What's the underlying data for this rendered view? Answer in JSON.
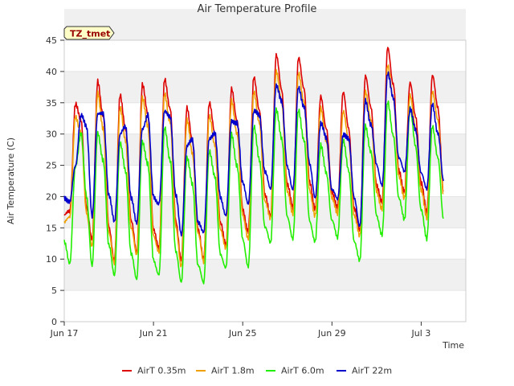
{
  "chart_data": {
    "type": "line",
    "title": "Air Temperature Profile",
    "xlabel": "Time",
    "ylabel": "Air Temperature (C)",
    "site_badge": "TZ_tmet",
    "ylim": [
      0,
      45
    ],
    "yticks": [
      0,
      5,
      10,
      15,
      20,
      25,
      30,
      35,
      40,
      45
    ],
    "xlim": [
      "2018-06-17",
      "2018-07-05"
    ],
    "xticks": [
      {
        "label": "Jun 17",
        "day": 0
      },
      {
        "label": "Jun 21",
        "day": 4
      },
      {
        "label": "Jun 25",
        "day": 8
      },
      {
        "label": "Jun 29",
        "day": 12
      },
      {
        "label": "Jul 3",
        "day": 16
      }
    ],
    "grid": "horizontal bands",
    "legend_position": "bottom",
    "x_note": "x values are dates; t is days since Jun 17 00:00 (fractional), one sample every 3 hours",
    "series": [
      {
        "name": "AirT 0.35m",
        "color": "#dd0000",
        "points": [
          [
            0.0,
            17.0
          ],
          [
            0.25,
            17.5
          ],
          [
            0.5,
            35.0
          ],
          [
            0.75,
            32.0
          ],
          [
            1.0,
            18.5
          ],
          [
            1.25,
            13.0
          ],
          [
            1.5,
            38.5
          ],
          [
            1.75,
            33.0
          ],
          [
            2.0,
            15.0
          ],
          [
            2.25,
            10.0
          ],
          [
            2.5,
            36.0
          ],
          [
            2.75,
            31.0
          ],
          [
            3.0,
            16.0
          ],
          [
            3.25,
            11.0
          ],
          [
            3.5,
            38.0
          ],
          [
            3.75,
            33.0
          ],
          [
            4.0,
            15.0
          ],
          [
            4.25,
            11.5
          ],
          [
            4.5,
            39.0
          ],
          [
            4.75,
            34.0
          ],
          [
            5.0,
            16.0
          ],
          [
            5.25,
            10.0
          ],
          [
            5.5,
            34.0
          ],
          [
            5.75,
            29.0
          ],
          [
            6.0,
            14.5
          ],
          [
            6.25,
            10.0
          ],
          [
            6.5,
            35.0
          ],
          [
            6.75,
            30.0
          ],
          [
            7.0,
            16.0
          ],
          [
            7.25,
            12.0
          ],
          [
            7.5,
            37.5
          ],
          [
            7.75,
            32.0
          ],
          [
            8.0,
            18.0
          ],
          [
            8.25,
            14.5
          ],
          [
            8.5,
            39.0
          ],
          [
            8.75,
            34.0
          ],
          [
            9.0,
            20.0
          ],
          [
            9.25,
            17.0
          ],
          [
            9.5,
            42.5
          ],
          [
            9.75,
            37.0
          ],
          [
            10.0,
            22.0
          ],
          [
            10.25,
            18.0
          ],
          [
            10.5,
            42.5
          ],
          [
            10.75,
            37.0
          ],
          [
            11.0,
            22.5
          ],
          [
            11.25,
            18.0
          ],
          [
            11.5,
            36.0
          ],
          [
            11.75,
            31.0
          ],
          [
            12.0,
            20.5
          ],
          [
            12.25,
            18.5
          ],
          [
            12.5,
            36.5
          ],
          [
            12.75,
            31.0
          ],
          [
            13.0,
            18.0
          ],
          [
            13.25,
            14.5
          ],
          [
            13.5,
            39.5
          ],
          [
            13.75,
            34.0
          ],
          [
            14.0,
            22.0
          ],
          [
            14.25,
            19.0
          ],
          [
            14.5,
            44.0
          ],
          [
            14.75,
            38.0
          ],
          [
            15.0,
            24.0
          ],
          [
            15.25,
            21.0
          ],
          [
            15.5,
            38.0
          ],
          [
            15.75,
            33.0
          ],
          [
            16.0,
            22.0
          ],
          [
            16.25,
            17.5
          ],
          [
            16.5,
            39.5
          ],
          [
            16.75,
            34.0
          ],
          [
            17.0,
            21.0
          ]
        ]
      },
      {
        "name": "AirT 1.8m",
        "color": "#f0a000",
        "points": [
          [
            0.0,
            16.0
          ],
          [
            0.25,
            16.5
          ],
          [
            0.5,
            33.0
          ],
          [
            0.75,
            30.0
          ],
          [
            1.0,
            17.5
          ],
          [
            1.25,
            12.0
          ],
          [
            1.5,
            36.5
          ],
          [
            1.75,
            31.0
          ],
          [
            2.0,
            14.0
          ],
          [
            2.25,
            9.5
          ],
          [
            2.5,
            34.0
          ],
          [
            2.75,
            29.0
          ],
          [
            3.0,
            15.0
          ],
          [
            3.25,
            10.5
          ],
          [
            3.5,
            36.0
          ],
          [
            3.75,
            31.0
          ],
          [
            4.0,
            14.0
          ],
          [
            4.25,
            11.0
          ],
          [
            4.5,
            36.5
          ],
          [
            4.75,
            32.0
          ],
          [
            5.0,
            15.0
          ],
          [
            5.25,
            9.0
          ],
          [
            5.5,
            32.0
          ],
          [
            5.75,
            27.0
          ],
          [
            6.0,
            14.0
          ],
          [
            6.25,
            9.5
          ],
          [
            6.5,
            33.0
          ],
          [
            6.75,
            28.0
          ],
          [
            7.0,
            15.0
          ],
          [
            7.25,
            11.5
          ],
          [
            7.5,
            35.5
          ],
          [
            7.75,
            30.0
          ],
          [
            8.0,
            17.0
          ],
          [
            8.25,
            13.5
          ],
          [
            8.5,
            36.5
          ],
          [
            8.75,
            32.0
          ],
          [
            9.0,
            19.0
          ],
          [
            9.25,
            16.5
          ],
          [
            9.5,
            40.0
          ],
          [
            9.75,
            35.0
          ],
          [
            10.0,
            21.0
          ],
          [
            10.25,
            17.0
          ],
          [
            10.5,
            40.0
          ],
          [
            10.75,
            35.0
          ],
          [
            11.0,
            21.0
          ],
          [
            11.25,
            17.0
          ],
          [
            11.5,
            34.0
          ],
          [
            11.75,
            29.0
          ],
          [
            12.0,
            19.5
          ],
          [
            12.25,
            17.5
          ],
          [
            12.5,
            33.5
          ],
          [
            12.75,
            29.0
          ],
          [
            13.0,
            17.0
          ],
          [
            13.25,
            13.5
          ],
          [
            13.5,
            37.0
          ],
          [
            13.75,
            32.0
          ],
          [
            14.0,
            21.0
          ],
          [
            14.25,
            18.0
          ],
          [
            14.5,
            41.0
          ],
          [
            14.75,
            36.0
          ],
          [
            15.0,
            23.0
          ],
          [
            15.25,
            20.0
          ],
          [
            15.5,
            36.0
          ],
          [
            15.75,
            31.0
          ],
          [
            16.0,
            21.0
          ],
          [
            16.25,
            16.5
          ],
          [
            16.5,
            37.0
          ],
          [
            16.75,
            32.0
          ],
          [
            17.0,
            20.5
          ]
        ]
      },
      {
        "name": "AirT 6.0m",
        "color": "#22ee00",
        "points": [
          [
            0.0,
            13.0
          ],
          [
            0.25,
            9.0
          ],
          [
            0.5,
            25.0
          ],
          [
            0.75,
            30.0
          ],
          [
            1.0,
            20.0
          ],
          [
            1.25,
            9.0
          ],
          [
            1.5,
            30.0
          ],
          [
            1.75,
            26.0
          ],
          [
            2.0,
            12.0
          ],
          [
            2.25,
            7.5
          ],
          [
            2.5,
            28.5
          ],
          [
            2.75,
            24.0
          ],
          [
            3.0,
            11.0
          ],
          [
            3.25,
            6.5
          ],
          [
            3.5,
            29.0
          ],
          [
            3.75,
            25.0
          ],
          [
            4.0,
            10.0
          ],
          [
            4.25,
            7.5
          ],
          [
            4.5,
            31.0
          ],
          [
            4.75,
            26.0
          ],
          [
            5.0,
            11.0
          ],
          [
            5.25,
            6.5
          ],
          [
            5.5,
            26.0
          ],
          [
            5.75,
            22.0
          ],
          [
            6.0,
            9.0
          ],
          [
            6.25,
            6.0
          ],
          [
            6.5,
            27.5
          ],
          [
            6.75,
            23.0
          ],
          [
            7.0,
            11.0
          ],
          [
            7.25,
            8.5
          ],
          [
            7.5,
            30.0
          ],
          [
            7.75,
            25.0
          ],
          [
            8.0,
            13.0
          ],
          [
            8.25,
            9.0
          ],
          [
            8.5,
            31.0
          ],
          [
            8.75,
            26.0
          ],
          [
            9.0,
            15.0
          ],
          [
            9.25,
            12.5
          ],
          [
            9.5,
            34.0
          ],
          [
            9.75,
            29.0
          ],
          [
            10.0,
            17.0
          ],
          [
            10.25,
            13.0
          ],
          [
            10.5,
            34.0
          ],
          [
            10.75,
            29.0
          ],
          [
            11.0,
            16.0
          ],
          [
            11.25,
            13.0
          ],
          [
            11.5,
            28.0
          ],
          [
            11.75,
            24.0
          ],
          [
            12.0,
            16.0
          ],
          [
            12.25,
            13.5
          ],
          [
            12.5,
            29.0
          ],
          [
            12.75,
            24.0
          ],
          [
            13.0,
            13.0
          ],
          [
            13.25,
            9.5
          ],
          [
            13.5,
            31.5
          ],
          [
            13.75,
            27.0
          ],
          [
            14.0,
            17.0
          ],
          [
            14.25,
            14.0
          ],
          [
            14.5,
            35.0
          ],
          [
            14.75,
            30.0
          ],
          [
            15.0,
            19.5
          ],
          [
            15.25,
            16.5
          ],
          [
            15.5,
            34.0
          ],
          [
            15.75,
            28.0
          ],
          [
            16.0,
            18.0
          ],
          [
            16.25,
            13.0
          ],
          [
            16.5,
            31.5
          ],
          [
            16.75,
            26.0
          ],
          [
            17.0,
            16.5
          ]
        ]
      },
      {
        "name": "AirT 22m",
        "color": "#0000cc",
        "points": [
          [
            0.0,
            20.0
          ],
          [
            0.25,
            19.0
          ],
          [
            0.5,
            25.0
          ],
          [
            0.75,
            33.0
          ],
          [
            1.0,
            31.0
          ],
          [
            1.25,
            17.0
          ],
          [
            1.5,
            33.0
          ],
          [
            1.75,
            33.5
          ],
          [
            2.0,
            20.0
          ],
          [
            2.25,
            16.0
          ],
          [
            2.5,
            30.0
          ],
          [
            2.75,
            31.0
          ],
          [
            3.0,
            20.0
          ],
          [
            3.25,
            15.5
          ],
          [
            3.5,
            31.0
          ],
          [
            3.75,
            33.0
          ],
          [
            4.0,
            20.0
          ],
          [
            4.25,
            19.0
          ],
          [
            4.5,
            33.5
          ],
          [
            4.75,
            33.0
          ],
          [
            5.0,
            20.0
          ],
          [
            5.25,
            14.0
          ],
          [
            5.5,
            28.0
          ],
          [
            5.75,
            29.0
          ],
          [
            6.0,
            16.0
          ],
          [
            6.25,
            14.0
          ],
          [
            6.5,
            29.5
          ],
          [
            6.75,
            30.0
          ],
          [
            7.0,
            20.0
          ],
          [
            7.25,
            17.0
          ],
          [
            7.5,
            32.0
          ],
          [
            7.75,
            32.0
          ],
          [
            8.0,
            22.0
          ],
          [
            8.25,
            19.0
          ],
          [
            8.5,
            33.5
          ],
          [
            8.75,
            33.0
          ],
          [
            9.0,
            24.0
          ],
          [
            9.25,
            21.0
          ],
          [
            9.5,
            38.0
          ],
          [
            9.75,
            35.0
          ],
          [
            10.0,
            25.0
          ],
          [
            10.25,
            21.0
          ],
          [
            10.5,
            37.5
          ],
          [
            10.75,
            34.5
          ],
          [
            11.0,
            25.0
          ],
          [
            11.25,
            20.0
          ],
          [
            11.5,
            31.5
          ],
          [
            11.75,
            29.5
          ],
          [
            12.0,
            21.0
          ],
          [
            12.25,
            19.5
          ],
          [
            12.5,
            30.0
          ],
          [
            12.75,
            29.0
          ],
          [
            13.0,
            20.0
          ],
          [
            13.25,
            15.0
          ],
          [
            13.5,
            35.5
          ],
          [
            13.75,
            31.5
          ],
          [
            14.0,
            25.0
          ],
          [
            14.25,
            22.0
          ],
          [
            14.5,
            39.5
          ],
          [
            14.75,
            36.0
          ],
          [
            15.0,
            26.0
          ],
          [
            15.25,
            24.0
          ],
          [
            15.5,
            34.0
          ],
          [
            15.75,
            30.5
          ],
          [
            16.0,
            24.0
          ],
          [
            16.25,
            21.0
          ],
          [
            16.5,
            35.0
          ],
          [
            16.75,
            30.0
          ],
          [
            17.0,
            22.5
          ]
        ]
      }
    ]
  }
}
